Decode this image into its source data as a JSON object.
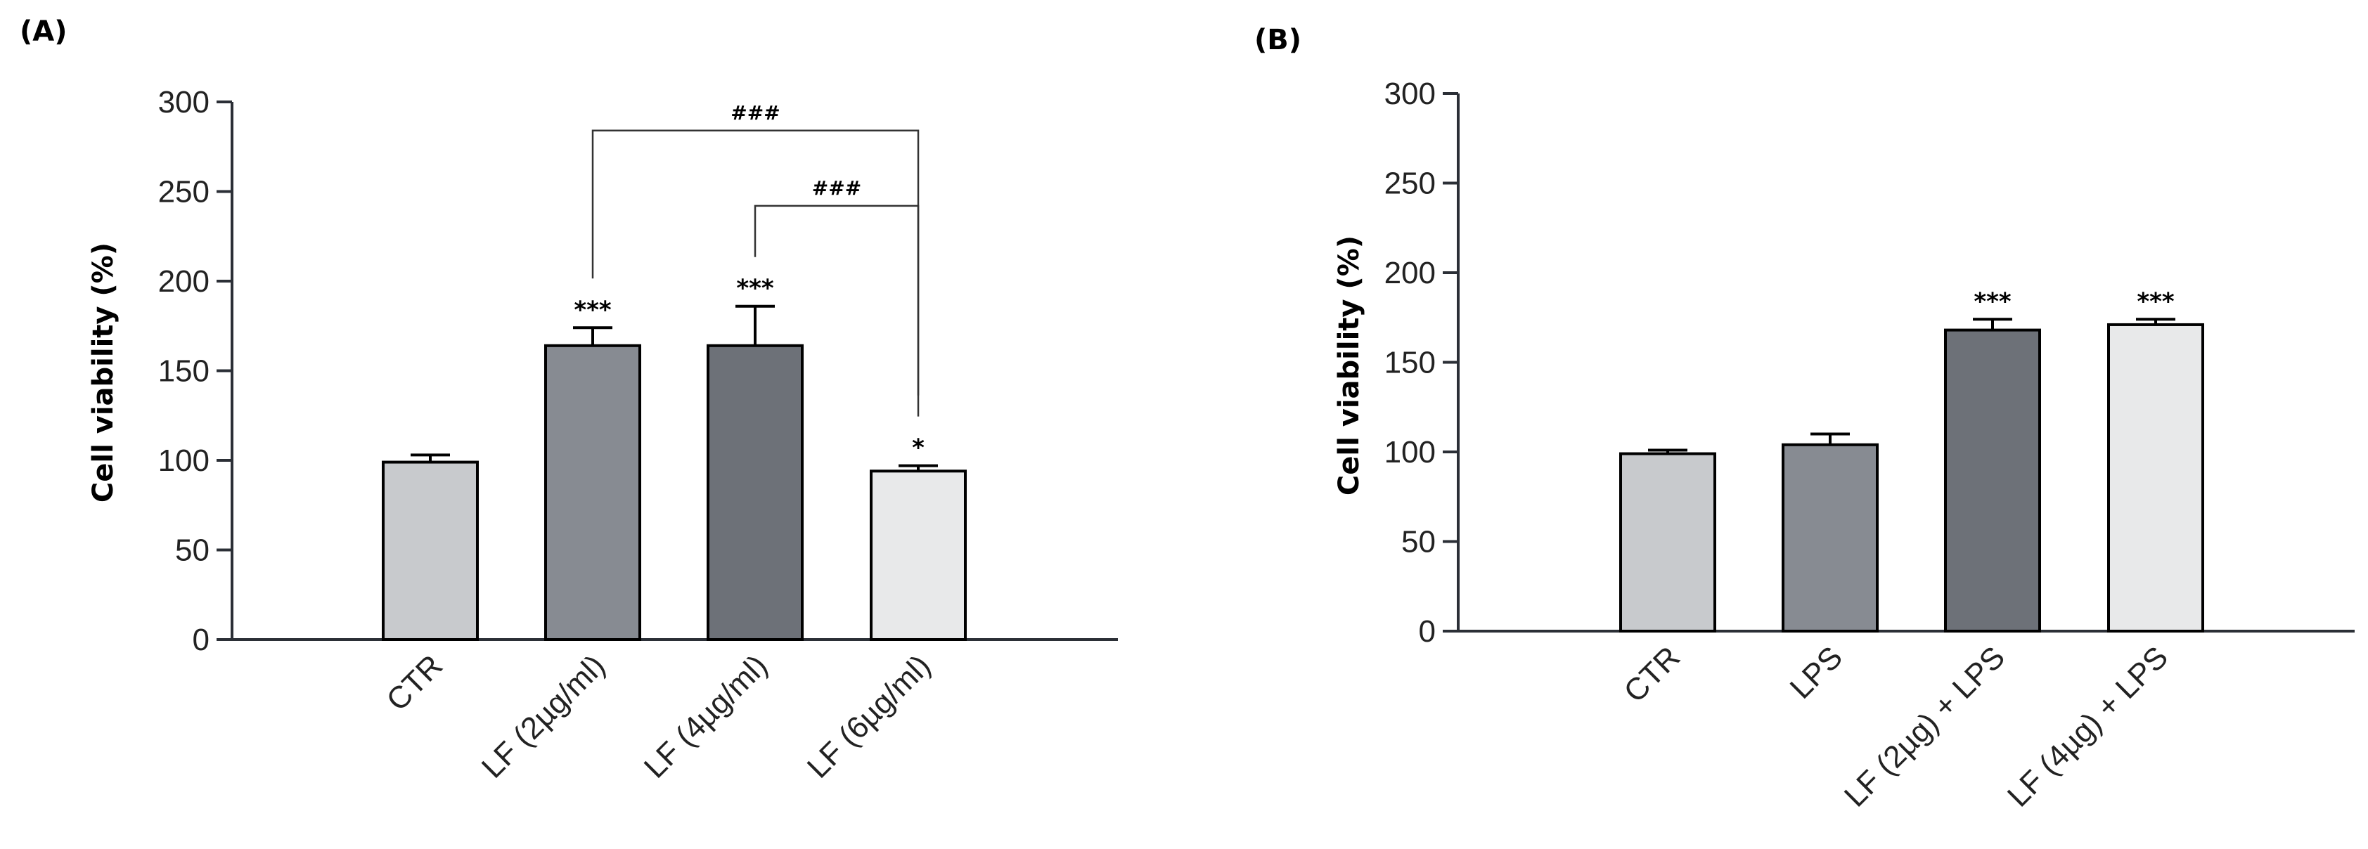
{
  "chart_data": [
    {
      "panel_label": "(A)",
      "type": "bar",
      "ylabel": "Cell viability (%)",
      "xlabel": "",
      "ylim": [
        0,
        300
      ],
      "yticks": [
        0,
        50,
        100,
        150,
        200,
        250,
        300
      ],
      "categories": [
        "CTR",
        "LF (2µg/ml)",
        "LF (4µg/ml)",
        "LF (6µg/ml)"
      ],
      "values": [
        99,
        164,
        164,
        94
      ],
      "errors": [
        4,
        10,
        22,
        3
      ],
      "colors": [
        "#c8cacd",
        "#878b92",
        "#6d7178",
        "#e8e9ea"
      ],
      "significance": [
        "",
        "***",
        "***",
        "*"
      ],
      "brackets": [
        {
          "from": 1,
          "to": 3,
          "label": "###",
          "y": 284
        },
        {
          "from": 2,
          "to": 3,
          "label": "###",
          "y": 242
        }
      ]
    },
    {
      "panel_label": "(B)",
      "type": "bar",
      "ylabel": "Cell viability (%)",
      "xlabel": "",
      "ylim": [
        0,
        300
      ],
      "yticks": [
        0,
        50,
        100,
        150,
        200,
        250,
        300
      ],
      "categories": [
        "CTR",
        "LPS",
        "LF (2µg) + LPS",
        "LF (4µg) + LPS"
      ],
      "values": [
        99,
        104,
        168,
        171
      ],
      "errors": [
        2,
        6,
        6,
        3
      ],
      "colors": [
        "#c8cacd",
        "#878b92",
        "#6d7178",
        "#e8e9ea"
      ],
      "significance": [
        "",
        "",
        "***",
        "***"
      ],
      "brackets": []
    }
  ]
}
